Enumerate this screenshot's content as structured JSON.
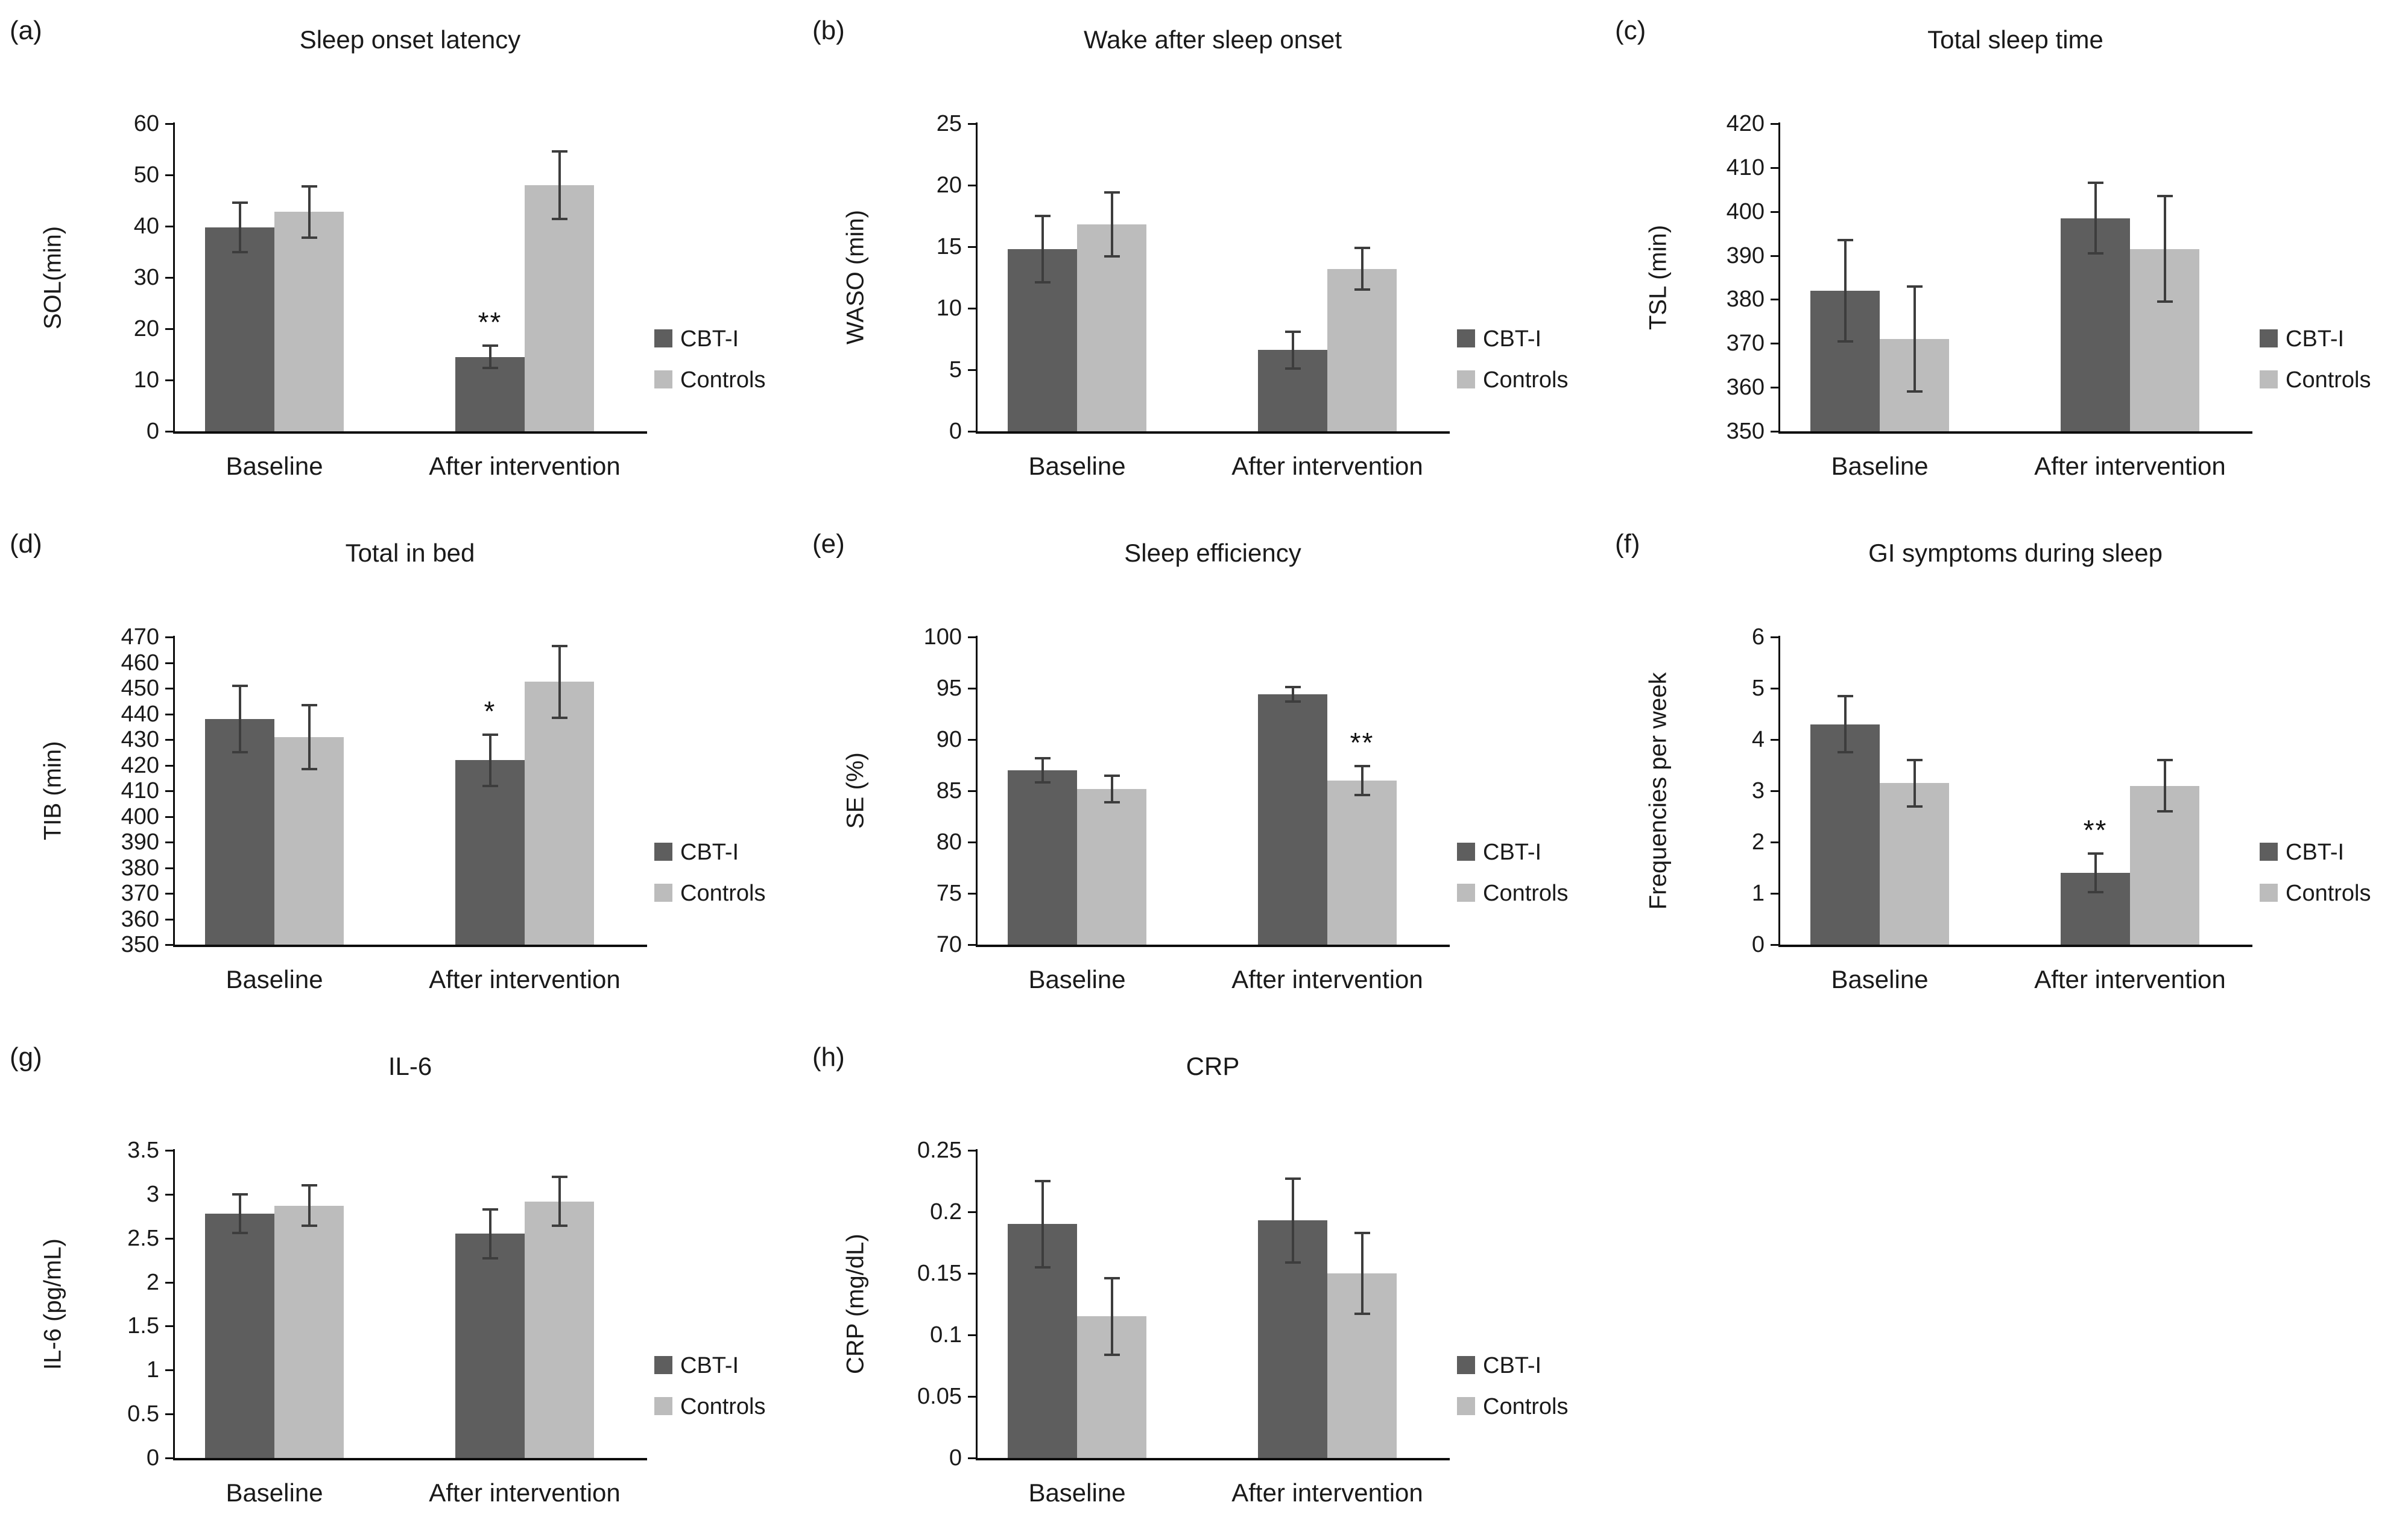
{
  "figure": {
    "categories": [
      "Baseline",
      "After intervention"
    ],
    "legend": {
      "cbt": "CBT-I",
      "controls": "Controls"
    },
    "colors": {
      "cbt": "#5e5e5e",
      "controls": "#bcbcbc",
      "axis": "#0d0d0d",
      "error": "#3d3d3d",
      "text": "#1a1a1a",
      "background": "#ffffff"
    }
  },
  "chart_data": [
    {
      "type": "bar",
      "panel": "(a)",
      "title": "Sleep onset latency",
      "ylabel": "SOL(min)",
      "ylim": [
        0,
        60
      ],
      "yticks": [
        "0",
        "10",
        "20",
        "30",
        "40",
        "50",
        "60"
      ],
      "categories": [
        "Baseline",
        "After intervention"
      ],
      "series": [
        {
          "name": "CBT-I",
          "values": [
            39.8,
            14.5
          ],
          "errors": [
            4.8,
            2.2
          ]
        },
        {
          "name": "Controls",
          "values": [
            42.8,
            48.0
          ],
          "errors": [
            5.0,
            6.6
          ]
        }
      ],
      "sig": [
        {
          "cat": 1,
          "series": 0,
          "label": "**"
        }
      ]
    },
    {
      "type": "bar",
      "panel": "(b)",
      "title": "Wake after sleep onset",
      "ylabel": "WASO (min)",
      "ylim": [
        0,
        25
      ],
      "yticks": [
        "0",
        "5",
        "10",
        "15",
        "20",
        "25"
      ],
      "categories": [
        "Baseline",
        "After intervention"
      ],
      "series": [
        {
          "name": "CBT-I",
          "values": [
            14.8,
            6.6
          ],
          "errors": [
            2.7,
            1.5
          ]
        },
        {
          "name": "Controls",
          "values": [
            16.8,
            13.2
          ],
          "errors": [
            2.6,
            1.7
          ]
        }
      ],
      "sig": []
    },
    {
      "type": "bar",
      "panel": "(c)",
      "title": "Total sleep time",
      "ylabel": "TSL (min)",
      "ylim": [
        350,
        420
      ],
      "yticks": [
        "350",
        "360",
        "370",
        "380",
        "390",
        "400",
        "410",
        "420"
      ],
      "categories": [
        "Baseline",
        "After intervention"
      ],
      "series": [
        {
          "name": "CBT-I",
          "values": [
            382,
            398.5
          ],
          "errors": [
            11.5,
            8
          ]
        },
        {
          "name": "Controls",
          "values": [
            371,
            391.5
          ],
          "errors": [
            12,
            12
          ]
        }
      ],
      "sig": []
    },
    {
      "type": "bar",
      "panel": "(d)",
      "title": "Total in bed",
      "ylabel": "TIB (min)",
      "ylim": [
        350,
        470
      ],
      "yticks": [
        "350",
        "360",
        "370",
        "380",
        "390",
        "400",
        "410",
        "420",
        "430",
        "440",
        "450",
        "460",
        "470"
      ],
      "categories": [
        "Baseline",
        "After intervention"
      ],
      "series": [
        {
          "name": "CBT-I",
          "values": [
            438,
            422
          ],
          "errors": [
            13,
            10
          ]
        },
        {
          "name": "Controls",
          "values": [
            431,
            452.5
          ],
          "errors": [
            12.5,
            14
          ]
        }
      ],
      "sig": [
        {
          "cat": 1,
          "series": 0,
          "label": "*"
        }
      ]
    },
    {
      "type": "bar",
      "panel": "(e)",
      "title": "Sleep efficiency",
      "ylabel": "SE (%)",
      "ylim": [
        70,
        100
      ],
      "yticks": [
        "70",
        "75",
        "80",
        "85",
        "90",
        "95",
        "100"
      ],
      "categories": [
        "Baseline",
        "After intervention"
      ],
      "series": [
        {
          "name": "CBT-I",
          "values": [
            87,
            94.4
          ],
          "errors": [
            1.2,
            0.7
          ]
        },
        {
          "name": "Controls",
          "values": [
            85.2,
            86
          ],
          "errors": [
            1.3,
            1.4
          ]
        }
      ],
      "sig": [
        {
          "cat": 1,
          "series": 1,
          "label": "**"
        }
      ]
    },
    {
      "type": "bar",
      "panel": "(f)",
      "title": "GI symptoms during sleep",
      "ylabel": "Frequencies per week",
      "ylim": [
        0,
        6
      ],
      "yticks": [
        "0",
        "1",
        "2",
        "3",
        "4",
        "5",
        "6"
      ],
      "categories": [
        "Baseline",
        "After intervention"
      ],
      "series": [
        {
          "name": "CBT-I",
          "values": [
            4.3,
            1.4
          ],
          "errors": [
            0.55,
            0.38
          ]
        },
        {
          "name": "Controls",
          "values": [
            3.15,
            3.1
          ],
          "errors": [
            0.45,
            0.5
          ]
        }
      ],
      "sig": [
        {
          "cat": 1,
          "series": 0,
          "label": "**"
        }
      ]
    },
    {
      "type": "bar",
      "panel": "(g)",
      "title": "IL-6",
      "ylabel": "IL-6 (pg/mL)",
      "ylim": [
        0,
        3.5
      ],
      "yticks": [
        "0",
        "0.5",
        "1",
        "1.5",
        "2",
        "2.5",
        "3",
        "3.5"
      ],
      "categories": [
        "Baseline",
        "After intervention"
      ],
      "series": [
        {
          "name": "CBT-I",
          "values": [
            2.78,
            2.55
          ],
          "errors": [
            0.22,
            0.28
          ]
        },
        {
          "name": "Controls",
          "values": [
            2.87,
            2.92
          ],
          "errors": [
            0.23,
            0.28
          ]
        }
      ],
      "sig": []
    },
    {
      "type": "bar",
      "panel": "(h)",
      "title": "CRP",
      "ylabel": "CRP (mg/dL)",
      "ylim": [
        0,
        0.25
      ],
      "yticks": [
        "0",
        "0.05",
        "0.1",
        "0.15",
        "0.2",
        "0.25"
      ],
      "categories": [
        "Baseline",
        "After intervention"
      ],
      "series": [
        {
          "name": "CBT-I",
          "values": [
            0.19,
            0.193
          ],
          "errors": [
            0.035,
            0.034
          ]
        },
        {
          "name": "Controls",
          "values": [
            0.115,
            0.15
          ],
          "errors": [
            0.031,
            0.033
          ]
        }
      ],
      "sig": []
    }
  ]
}
